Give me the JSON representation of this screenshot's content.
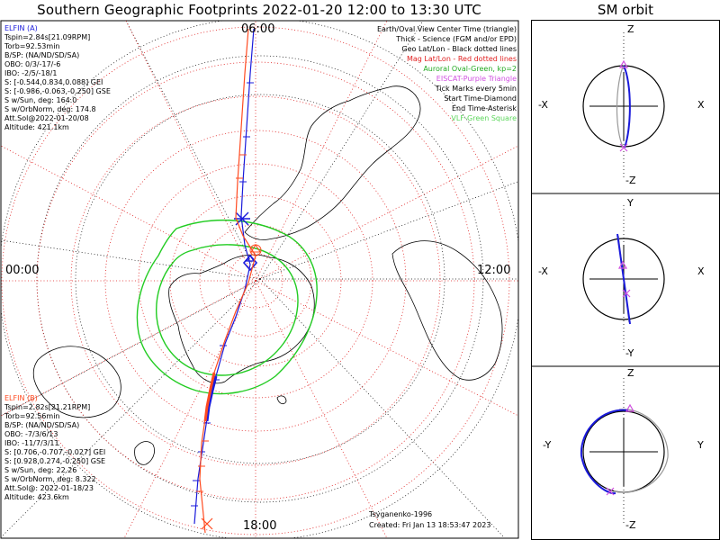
{
  "title": "Southern Geographic Footprints 2022-01-20 12:00 to 13:30 UTC",
  "sm_title": "SM orbit",
  "colors": {
    "elfin_a": "#1a1adb",
    "elfin_b": "#ff4a20",
    "geo_grid": "#000000",
    "mag_grid": "#e02020",
    "oval": "#22cc22",
    "eiscat": "#d050e0",
    "vlf": "#5cd65c"
  },
  "elfin_a": {
    "name": "ELFIN (A)",
    "lines": [
      "Tspin=2.84s[21.09RPM]",
      "Torb=92.53min",
      "B/SP: (NA/ND/SD/SA)",
      "OBO: 0/3/-17/-6",
      "IBO: -2/5/-18/1",
      "S: [-0.544,0.834,0.088] GEI",
      "S: [-0.986,-0.063,-0.250] GSE",
      "S w/Sun, deg: 164.0",
      "S w/OrbNorm, deg: 174.8",
      "Att.Sol@2022-01-20/08",
      "Altitude: 421.1km"
    ]
  },
  "elfin_b": {
    "name": "ELFIN (B)",
    "lines": [
      "Tspin=2.82s[21.21RPM]",
      "Torb=92.56min",
      "B/SP: (NA/ND/SD/SA)",
      "OBO: -7/3/6/13",
      "IBO: -11/7/3/11",
      "S: [0.706,-0.707,-0.027] GEI",
      "S: [0.928,0.274,-0.250] GSE",
      "S w/Sun, deg: 22.26",
      "S w/OrbNorm, deg: 8.322",
      "Att.Sol@: 2022-01-18/23",
      "Altitude: 423.6km"
    ]
  },
  "legend": [
    {
      "text": "Earth/Oval View Center Time (triangle)",
      "color": "#000000"
    },
    {
      "text": "Thick - Science (FGM and/or EPD)",
      "color": "#000000"
    },
    {
      "text": "Geo Lat/Lon - Black dotted lines",
      "color": "#000000"
    },
    {
      "text": "Mag Lat/Lon - Red dotted lines",
      "color": "#e02020"
    },
    {
      "text": "Auroral Oval-Green, kp=2",
      "color": "#22aa22"
    },
    {
      "text": "EISCAT-Purple Triangle",
      "color": "#d050e0"
    },
    {
      "text": "Tick Marks every 5min",
      "color": "#000000"
    },
    {
      "text": "Start Time-Diamond",
      "color": "#000000"
    },
    {
      "text": "End Time-Asterisk",
      "color": "#000000"
    },
    {
      "text": "VLF-Green Square",
      "color": "#5cd65c"
    }
  ],
  "clock_labels": {
    "top": "06:00",
    "left": "00:00",
    "right": "12:00",
    "bottom": "18:00"
  },
  "footer": {
    "model": "Tsyganenko-1996",
    "created": "Created: Fri Jan 13 18:53:47 2023"
  },
  "sm_panels": [
    {
      "top": "Z",
      "bottom": "-Z",
      "left": "-X",
      "right": "X"
    },
    {
      "top": "Y",
      "bottom": "-Y",
      "left": "-X",
      "right": "X"
    },
    {
      "top": "Z",
      "bottom": "-Z",
      "left": "-Y",
      "right": "Y"
    }
  ]
}
